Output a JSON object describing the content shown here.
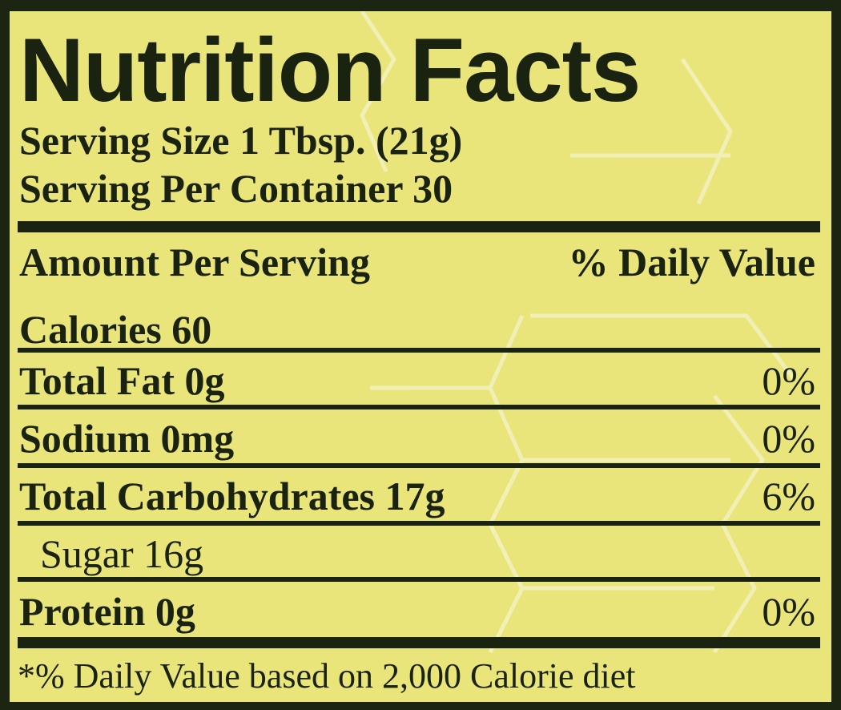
{
  "title": "Nutrition Facts",
  "serving_size": "Serving Size 1 Tbsp. (21g)",
  "servings_per_container": "Serving Per Container 30",
  "header": {
    "amount": "Amount Per Serving",
    "daily_value": "% Daily Value"
  },
  "calories": "Calories 60",
  "nutrients": [
    {
      "label": "Total Fat 0g",
      "dv": "0%"
    },
    {
      "label": "Sodium 0mg",
      "dv": "0%"
    },
    {
      "label": "Total Carbohydrates 17g",
      "dv": "6%"
    },
    {
      "label": "Sugar 16g",
      "dv": ""
    },
    {
      "label": "Protein 0g",
      "dv": "0%"
    }
  ],
  "footnote": "*% Daily Value based on 2,000 Calorie diet",
  "colors": {
    "background": "#e9e57a",
    "ink": "#1a2210",
    "border": "#1c2412"
  }
}
